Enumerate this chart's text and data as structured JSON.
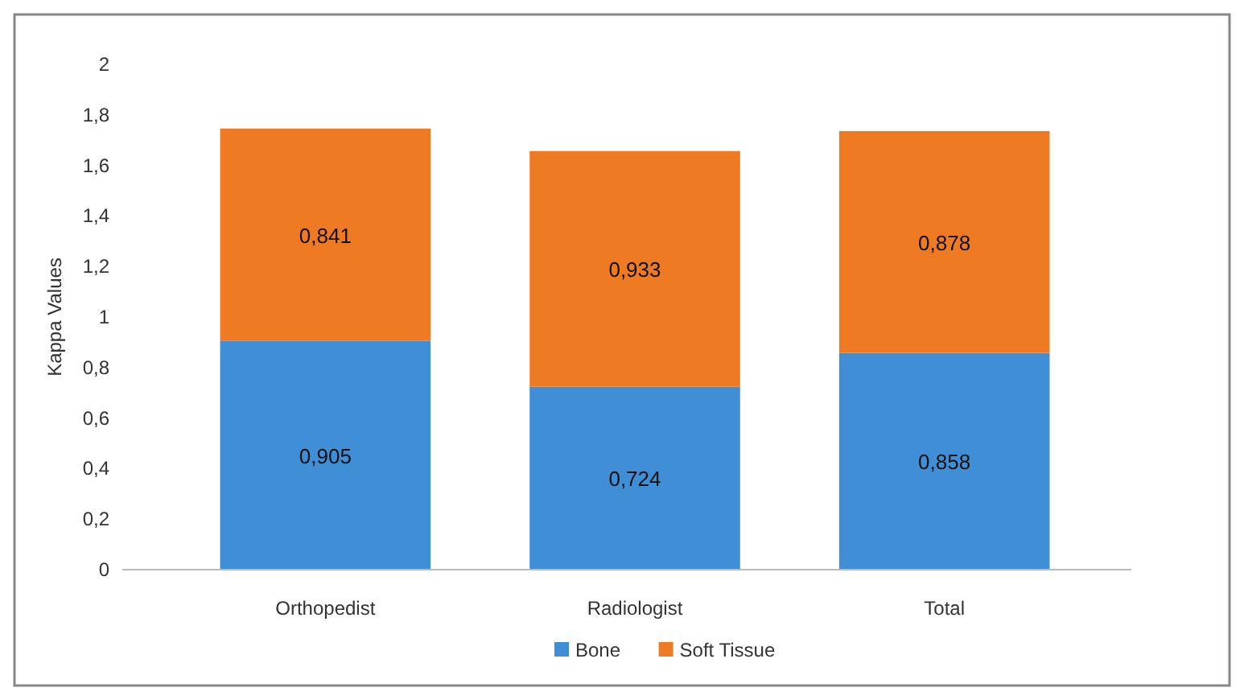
{
  "chart_data": {
    "type": "bar",
    "stacked": true,
    "ylabel": "Kappa Values",
    "categories": [
      "Orthopedist",
      "Radiologist",
      "Total"
    ],
    "series": [
      {
        "name": "Bone",
        "color": "#3f8ed6",
        "values": [
          0.905,
          0.724,
          0.858
        ],
        "value_labels": [
          "0,905",
          "0,724",
          "0,858"
        ]
      },
      {
        "name": "Soft Tissue",
        "color": "#ee7b24",
        "values": [
          0.841,
          0.933,
          0.878
        ],
        "value_labels": [
          "0,841",
          "0,933",
          "0,878"
        ]
      }
    ],
    "ylim": [
      0,
      2
    ],
    "yticks": [
      0,
      {
        "value": 0.2,
        "label": "0,2"
      },
      {
        "value": 0.4,
        "label": "0,4"
      },
      {
        "value": 0.6,
        "label": "0,6"
      },
      {
        "value": 0.8,
        "label": "0,8"
      },
      1,
      {
        "value": 1.2,
        "label": "1,2"
      },
      {
        "value": 1.4,
        "label": "1,4"
      },
      {
        "value": 1.6,
        "label": "1,6"
      },
      {
        "value": 1.8,
        "label": "1,8"
      },
      2
    ],
    "grid": false,
    "legend": "bottom"
  }
}
